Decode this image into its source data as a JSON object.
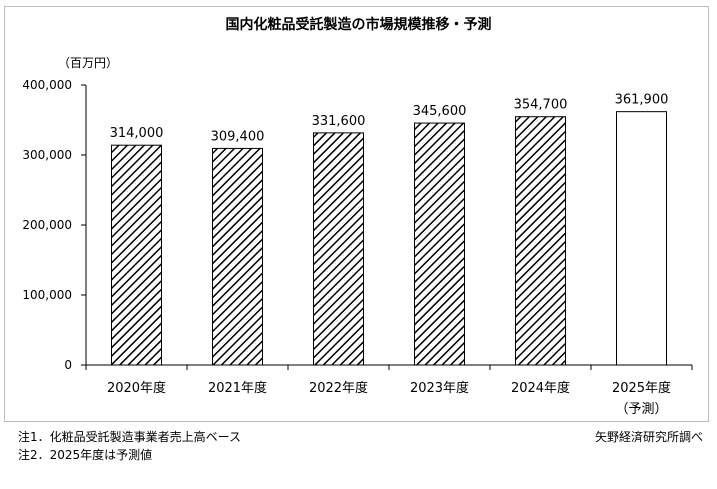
{
  "chart_data": {
    "type": "bar",
    "title": "国内化粧品受託製造の市場規模推移・予測",
    "unit_label": "（百万円）",
    "categories": [
      "2020年度",
      "2021年度",
      "2022年度",
      "2023年度",
      "2024年度",
      "2025年度"
    ],
    "category_sublabels": [
      "",
      "",
      "",
      "",
      "",
      "（予測）"
    ],
    "values": [
      314000,
      309400,
      331600,
      345600,
      354700,
      361900
    ],
    "value_labels": [
      "314,000",
      "309,400",
      "331,600",
      "345,600",
      "354,700",
      "361,900"
    ],
    "bar_style": [
      "hatched",
      "hatched",
      "hatched",
      "hatched",
      "hatched",
      "solid-white"
    ],
    "yticks": [
      0,
      100000,
      200000,
      300000,
      400000
    ],
    "ytick_labels": [
      "0",
      "100,000",
      "200,000",
      "300,000",
      "400,000"
    ],
    "ylim": [
      0,
      400000
    ],
    "grid": false,
    "xlabel": "",
    "ylabel": ""
  },
  "notes": {
    "note1": "注1．化粧品受託製造事業者売上高ベース",
    "note2": "注2．2025年度は予測値",
    "source": "矢野経済研究所調べ"
  }
}
